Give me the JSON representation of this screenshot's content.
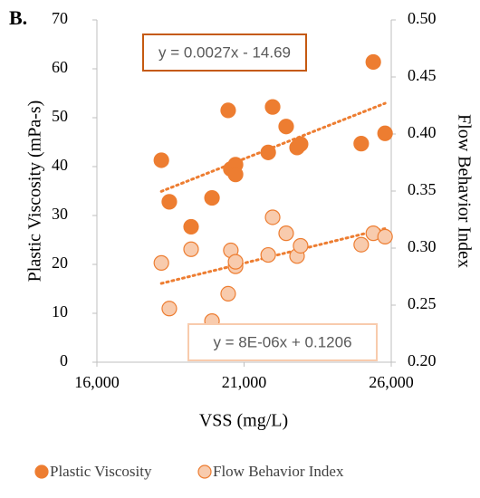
{
  "chart_data": {
    "type": "scatter",
    "panel_label": "B.",
    "x_label": "VSS (mg/L)",
    "y_label": "Plastic Viscosity (mPa-s)",
    "y2_label": "Flow Behavior Index",
    "xlim": [
      16000,
      26000
    ],
    "xticks": [
      {
        "value": 16000,
        "label": "16,000"
      },
      {
        "value": 21000,
        "label": "21,000"
      },
      {
        "value": 26000,
        "label": "26,000"
      }
    ],
    "ylim": [
      0,
      70
    ],
    "yticks": [
      0,
      10,
      20,
      30,
      40,
      50,
      60,
      70
    ],
    "y2lim": [
      0.2,
      0.5
    ],
    "y2ticks": [
      {
        "value": 0.2,
        "label": "0.20"
      },
      {
        "value": 0.25,
        "label": "0.25"
      },
      {
        "value": 0.3,
        "label": "0.30"
      },
      {
        "value": 0.35,
        "label": "0.35"
      },
      {
        "value": 0.4,
        "label": "0.40"
      },
      {
        "value": 0.45,
        "label": "0.45"
      },
      {
        "value": 0.5,
        "label": "0.50"
      }
    ],
    "grid": false,
    "legend": "bottom",
    "series": [
      {
        "name": "Plastic Viscosity",
        "color": "#ed7d31",
        "edge": "#ed7d31",
        "axis": "y",
        "trendline_label": "y = 0.0027x - 14.69",
        "trendline_border": "#c55a11",
        "x": [
          18190,
          18460,
          19200,
          19910,
          20460,
          20550,
          20710,
          20710,
          21820,
          21970,
          22430,
          22800,
          22920,
          24980,
          25390,
          25790
        ],
        "values": [
          41.3,
          32.8,
          27.7,
          33.6,
          51.5,
          39.5,
          40.4,
          38.4,
          42.9,
          52.2,
          48.2,
          43.9,
          44.6,
          44.7,
          61.4,
          46.8
        ]
      },
      {
        "name": "Flow Behavior Index",
        "color": "#f8cbad",
        "edge": "#ed7d31",
        "axis": "y2",
        "trendline_label": "y = 8E-06x + 0.1206",
        "trendline_border": "#f8cbad",
        "x": [
          18190,
          18460,
          19200,
          19910,
          20460,
          20550,
          20710,
          20710,
          21820,
          21970,
          22430,
          22800,
          22920,
          24980,
          25390,
          25790
        ],
        "values": [
          0.287,
          0.247,
          0.299,
          0.236,
          0.26,
          0.298,
          0.284,
          0.288,
          0.294,
          0.327,
          0.313,
          0.293,
          0.302,
          0.303,
          0.313,
          0.31
        ]
      }
    ]
  }
}
